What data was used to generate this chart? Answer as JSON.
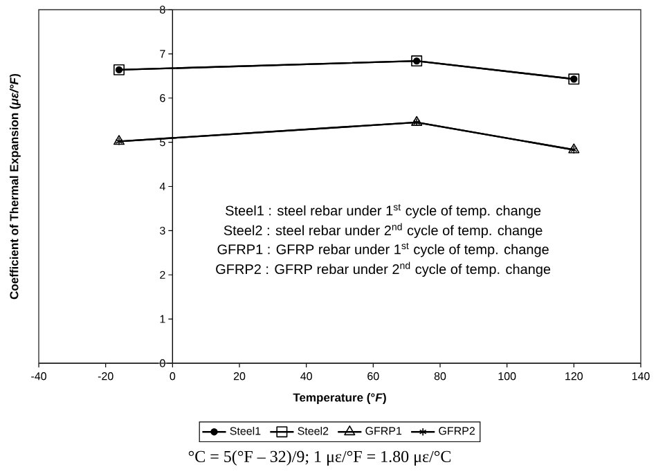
{
  "chart_data": {
    "type": "line",
    "xlabel": "Temperature (°*F*)",
    "ylabel": "Coefficient of Thermal Expansion (*με/°F*)",
    "xlim": [
      -40,
      140
    ],
    "ylim": [
      0,
      8
    ],
    "xticks": [
      -40,
      -20,
      0,
      20,
      40,
      60,
      80,
      100,
      120,
      140
    ],
    "yticks": [
      0,
      1,
      2,
      3,
      4,
      5,
      6,
      7,
      8
    ],
    "legend": "bottom",
    "line_style": "solid",
    "x": [
      -16,
      73,
      120
    ],
    "series": [
      {
        "name": "Steel1",
        "color": "#000000",
        "marker": "circle",
        "values": [
          6.64,
          6.84,
          6.43
        ]
      },
      {
        "name": "Steel2",
        "color": "#000000",
        "marker": "square",
        "values": [
          6.64,
          6.84,
          6.43
        ]
      },
      {
        "name": "GFRP1",
        "color": "#000000",
        "marker": "triangle",
        "values": [
          5.02,
          5.45,
          4.83
        ]
      },
      {
        "name": "GFRP2",
        "color": "#000000",
        "marker": "cross",
        "values": [
          5.02,
          5.45,
          4.83
        ]
      }
    ],
    "annotations": [
      "Steel1  : steel rebar under 1$^{st}$ cycle of temp. change",
      "Steel2  : steel rebar under 2$^{nd}$ cycle of temp. change",
      "GFRP1 : GFRP rebar under 1$^{st}$ cycle of temp. change",
      "GFRP2 : GFRP rebar under 2$^{nd}$ cycle of temp. change",
      "°C = 5(°F – 32)/9; 1 με/°F = 1.80 με/°C"
    ]
  }
}
